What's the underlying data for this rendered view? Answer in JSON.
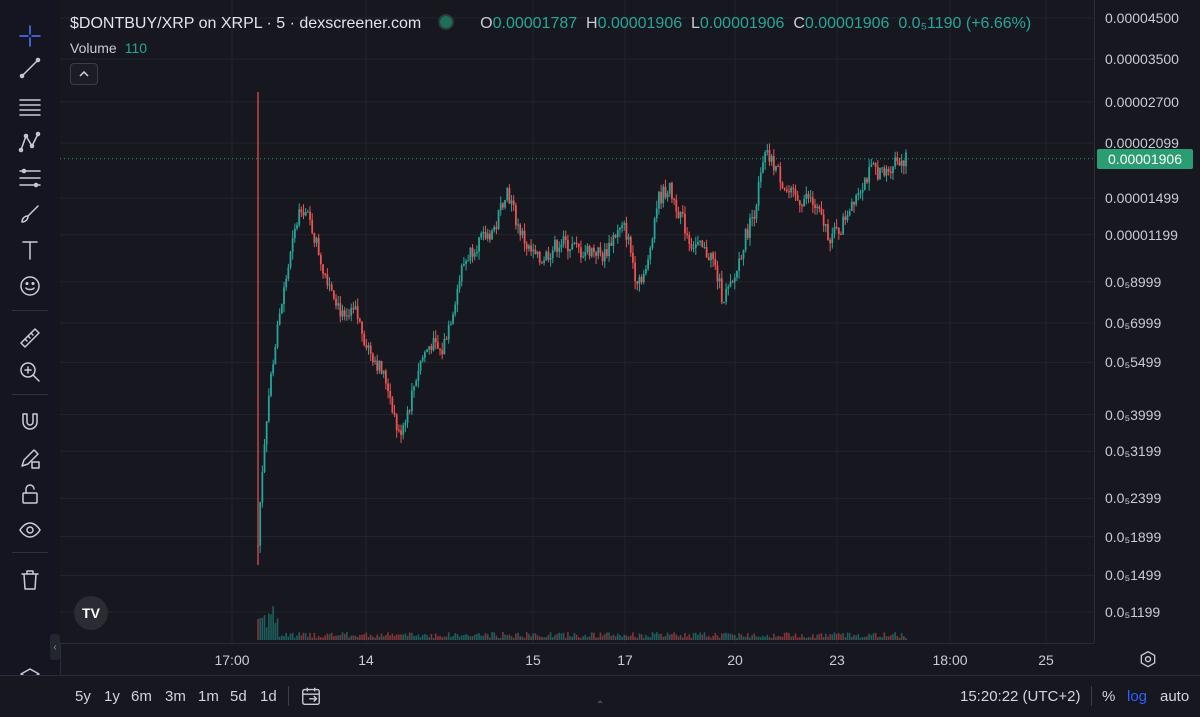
{
  "header": {
    "symbol_title": "$DONTBUY/XRP on XRPL · 5 · dexscreener.com",
    "ohlc": [
      {
        "key": "O",
        "value": "0.00001787"
      },
      {
        "key": "H",
        "value": "0.00001906"
      },
      {
        "key": "L",
        "value": "0.00001906"
      },
      {
        "key": "C",
        "value": "0.00001906"
      }
    ],
    "change": "0.0₅1190 (+6.66%)",
    "volume_label": "Volume",
    "volume_value": "110"
  },
  "price_axis": {
    "labels": [
      {
        "text": "0.00004500",
        "value": 4.5e-05
      },
      {
        "text": "0.00003500",
        "value": 3.5e-05
      },
      {
        "text": "0.00002700",
        "value": 2.7e-05
      },
      {
        "text": "0.00002099",
        "value": 2.099e-05
      },
      {
        "text": "0.00001499",
        "value": 1.499e-05
      },
      {
        "text": "0.00001199",
        "value": 1.199e-05
      },
      {
        "text": "0.0₅8999",
        "value": 8.999e-06
      },
      {
        "text": "0.0₅6999",
        "value": 6.999e-06
      },
      {
        "text": "0.0₅5499",
        "value": 5.499e-06
      },
      {
        "text": "0.0₅3999",
        "value": 3.999e-06
      },
      {
        "text": "0.0₅3199",
        "value": 3.199e-06
      },
      {
        "text": "0.0₅2399",
        "value": 2.399e-06
      },
      {
        "text": "0.0₅1899",
        "value": 1.899e-06
      },
      {
        "text": "0.0₅1499",
        "value": 1.499e-06
      },
      {
        "text": "0.0₅1199",
        "value": 1.199e-06
      }
    ],
    "current_price": "0.00001906"
  },
  "time_axis": {
    "labels": [
      "17:00",
      "14",
      "15",
      "17",
      "20",
      "23",
      "18:00",
      "25"
    ]
  },
  "chart_data": {
    "type": "candlestick",
    "scale": "log",
    "x_labels": [
      "17:00",
      "14",
      "15",
      "17",
      "20",
      "23",
      "18:00",
      "25"
    ],
    "price_range": [
      1e-06,
      4.5e-05
    ],
    "current_price": 1.906e-05,
    "open": 1.787e-05,
    "high": 1.906e-05,
    "low": 1.906e-05,
    "close": 1.906e-05,
    "close_series": [
      1.8e-06,
      4.5e-06,
      7.2e-06,
      1.05e-05,
      1.45e-05,
      1.25e-05,
      9.8e-06,
      8.5e-06,
      7e-06,
      7.5e-06,
      6.2e-06,
      5.5e-06,
      4.8e-06,
      3.5e-06,
      4.2e-06,
      5.5e-06,
      6.2e-06,
      5.8e-06,
      7.5e-06,
      1e-05,
      1.12e-05,
      1.18e-05,
      1.25e-05,
      1.6e-05,
      1.28e-05,
      1.1e-05,
      1.02e-05,
      1.08e-05,
      1.15e-05,
      1.12e-05,
      1.08e-05,
      1.1e-05,
      1.05e-05,
      1.2e-05,
      1.25e-05,
      9.2e-06,
      9.5e-06,
      1.48e-05,
      1.6e-05,
      1.38e-05,
      1.15e-05,
      1.1e-05,
      1.05e-05,
      8.2e-06,
      8.8e-06,
      1.15e-05,
      1.4e-05,
      1.95e-05,
      1.8e-05,
      1.55e-05,
      1.48e-05,
      1.5e-05,
      1.35e-05,
      1.18e-05,
      1.25e-05,
      1.48e-05,
      1.65e-05,
      1.8e-05,
      1.72e-05,
      1.9e-05,
      1.9e-05
    ]
  },
  "toolbar": {
    "tools": [
      "crosshair-icon",
      "trend-line-icon",
      "horizontal-lines-icon",
      "pattern-icon",
      "fib-icon",
      "brush-icon",
      "text-icon",
      "emoji-icon",
      "ruler-icon",
      "zoom-in-icon",
      "magnet-icon",
      "lock-pencil-icon",
      "lock-icon",
      "eye-icon",
      "trash-icon",
      "layers-icon"
    ]
  },
  "bottom_bar": {
    "ranges": [
      "5y",
      "1y",
      "6m",
      "3m",
      "1m",
      "5d",
      "1d"
    ],
    "clock": "15:20:22 (UTC+2)",
    "percent": "%",
    "log": "log",
    "auto": "auto"
  },
  "colors": {
    "background": "#16171f",
    "up": "#26a69a",
    "down": "#ef5350",
    "price_tag": "#2a9d72"
  }
}
